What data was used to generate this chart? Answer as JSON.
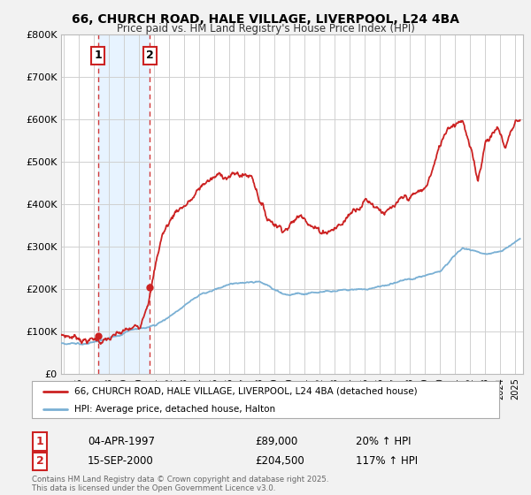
{
  "title_line1": "66, CHURCH ROAD, HALE VILLAGE, LIVERPOOL, L24 4BA",
  "title_line2": "Price paid vs. HM Land Registry's House Price Index (HPI)",
  "background_color": "#f2f2f2",
  "plot_bg_color": "#ffffff",
  "red_color": "#cc2222",
  "blue_color": "#7ab0d4",
  "shade_color": "#ddeeff",
  "marker1_x": 1997.26,
  "marker1_y": 89000,
  "marker1_label": "1",
  "marker1_date": "04-APR-1997",
  "marker1_price": "£89,000",
  "marker1_hpi": "20% ↑ HPI",
  "marker2_x": 2000.71,
  "marker2_y": 204500,
  "marker2_label": "2",
  "marker2_date": "15-SEP-2000",
  "marker2_price": "£204,500",
  "marker2_hpi": "117% ↑ HPI",
  "legend_label_red": "66, CHURCH ROAD, HALE VILLAGE, LIVERPOOL, L24 4BA (detached house)",
  "legend_label_blue": "HPI: Average price, detached house, Halton",
  "footer_text": "Contains HM Land Registry data © Crown copyright and database right 2025.\nThis data is licensed under the Open Government Licence v3.0.",
  "ylim": [
    0,
    800000
  ],
  "yticks": [
    0,
    100000,
    200000,
    300000,
    400000,
    500000,
    600000,
    700000,
    800000
  ],
  "ytick_labels": [
    "£0",
    "£100K",
    "£200K",
    "£300K",
    "£400K",
    "£500K",
    "£600K",
    "£700K",
    "£800K"
  ],
  "xmin": 1994.8,
  "xmax": 2025.5
}
